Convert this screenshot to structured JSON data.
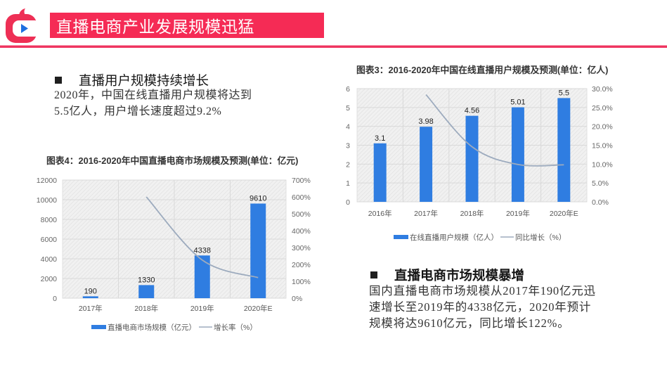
{
  "header": {
    "title": "直播电商产业发展规模迅猛",
    "logo_icon": "tv-play-logo-icon",
    "accent_color": "#f52b55",
    "logo_play_color": "#1d6fe0"
  },
  "sections": [
    {
      "heading": "直播用户规模持续增长",
      "bullet_icon": "square-bullet-icon",
      "lines": [
        "2020年，中国在线直播用户规模将达到",
        "5.5亿人，用户增长速度超过9.2%"
      ]
    },
    {
      "heading": "直播电商市场规模暴增",
      "bullet_icon": "square-bullet-icon",
      "lines": [
        "国内直播电商市场规模从2017年190亿元迅",
        "速增长至2019年的4338亿元，2020年预计",
        "规模将达9610亿元，同比增长122%。"
      ]
    }
  ],
  "chart_data": [
    {
      "id": "users",
      "type": "bar",
      "title": "图表3：2016-2020年中国在线直播用户规模及预测(单位：亿人)",
      "xlabel": "",
      "ylabel": "亿人",
      "categories": [
        "2016年",
        "2017年",
        "2018年",
        "2019年",
        "2020年E"
      ],
      "series": [
        {
          "name": "在线直播用户规模（亿人）",
          "type": "bar",
          "axis": "left",
          "color": "#2f7de1",
          "values": [
            3.1,
            3.98,
            4.56,
            5.01,
            5.5
          ],
          "labels": [
            "3.1",
            "3.98",
            "4.56",
            "5.01",
            "5.5"
          ]
        },
        {
          "name": "同比增长（%）",
          "type": "line",
          "axis": "right",
          "color": "#9dabbe",
          "values": [
            null,
            28.4,
            14.6,
            9.9,
            9.8
          ]
        }
      ],
      "y_left": {
        "min": 0,
        "max": 6,
        "ticks": [
          "0",
          "1",
          "2",
          "3",
          "4",
          "5",
          "6"
        ]
      },
      "y_right": {
        "min": 0,
        "max": 30,
        "ticks": [
          "0.0%",
          "5.0%",
          "10.0%",
          "15.0%",
          "20.0%",
          "25.0%",
          "30.0%"
        ]
      },
      "ylim": [
        0,
        6
      ],
      "grid": true,
      "legend_position": "bottom"
    },
    {
      "id": "market",
      "type": "bar",
      "title": "图表4：2016-2020年中国直播电商市场规模及预测(单位：亿元)",
      "xlabel": "",
      "ylabel": "亿元",
      "categories": [
        "2017年",
        "2018年",
        "2019年",
        "2020年E"
      ],
      "series": [
        {
          "name": "直播电商市场规模（亿元）",
          "type": "bar",
          "axis": "left",
          "color": "#2f7de1",
          "values": [
            190,
            1330,
            4338,
            9610
          ],
          "labels": [
            "190",
            "1330",
            "4338",
            "9610"
          ]
        },
        {
          "name": "增长率（%）",
          "type": "line",
          "axis": "right",
          "color": "#9dabbe",
          "values": [
            null,
            600,
            226,
            122
          ]
        }
      ],
      "y_left": {
        "min": 0,
        "max": 12000,
        "ticks": [
          "0",
          "2000",
          "4000",
          "6000",
          "8000",
          "10000",
          "12000"
        ]
      },
      "y_right": {
        "min": 0,
        "max": 700,
        "ticks": [
          "0%",
          "100%",
          "200%",
          "300%",
          "400%",
          "500%",
          "600%",
          "700%"
        ]
      },
      "ylim": [
        0,
        12000
      ],
      "grid": true,
      "legend_position": "bottom"
    }
  ]
}
